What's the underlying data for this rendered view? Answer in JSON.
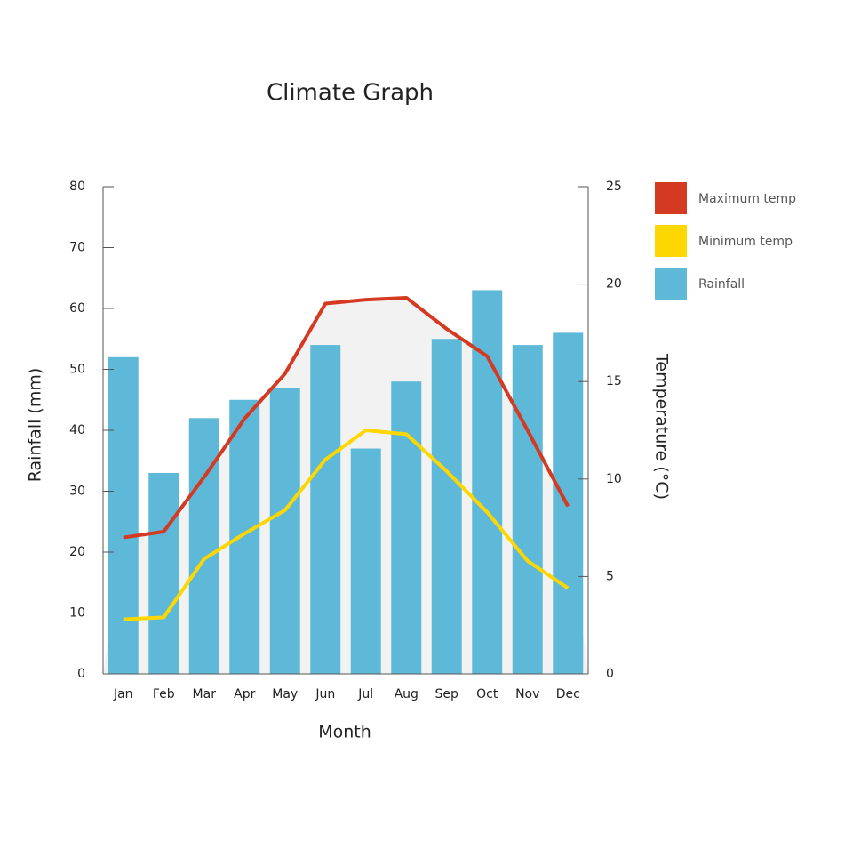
{
  "chart_data": {
    "type": "bar_line",
    "title": "Climate Graph",
    "x_label": "Month",
    "y_label": "Rainfall (mm)",
    "y2_label": "Temperature (°C)",
    "categories": [
      "Jan",
      "Feb",
      "Mar",
      "Apr",
      "May",
      "Jun",
      "Jul",
      "Aug",
      "Sep",
      "Oct",
      "Nov",
      "Dec"
    ],
    "series": [
      {
        "name": "Maximum temp",
        "color": "#d43a22",
        "type": "line",
        "axis": "y2",
        "values": [
          7.0,
          7.3,
          10.1,
          13.1,
          15.4,
          19.0,
          19.2,
          19.3,
          17.7,
          16.3,
          12.5,
          8.6
        ]
      },
      {
        "name": "Minimum temp",
        "color": "#ffd700",
        "type": "line",
        "axis": "y2",
        "values": [
          2.8,
          2.9,
          5.9,
          7.2,
          8.4,
          11.0,
          12.5,
          12.3,
          10.4,
          8.3,
          5.8,
          4.4
        ]
      },
      {
        "name": "Rainfall",
        "color": "#5eb9d8",
        "type": "bar",
        "values": [
          52,
          33,
          42,
          45,
          47,
          54,
          37,
          48,
          55,
          63,
          54,
          56
        ]
      }
    ],
    "ylim": [
      0,
      80
    ],
    "yticks": [
      0,
      10,
      20,
      30,
      40,
      50,
      60,
      70,
      80
    ],
    "y2lim": [
      0,
      25
    ],
    "y2ticks": [
      0,
      5,
      10,
      15,
      20,
      25
    ]
  }
}
